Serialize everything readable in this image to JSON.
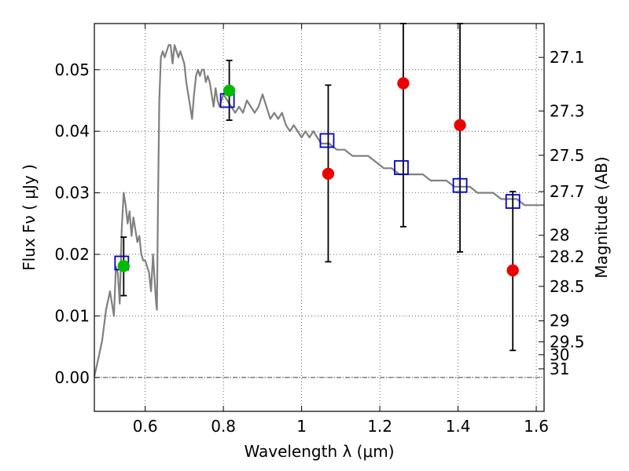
{
  "chart_data": {
    "type": "scatter",
    "xlabel": "Wavelength  λ (μm)",
    "ylabel": "Flux  Fν  ( μJy )",
    "y2label": "Magnitude (AB)",
    "xlim": [
      0.47,
      1.62
    ],
    "ylim": [
      -0.0055,
      0.0575
    ],
    "x_ticks": [
      0.6,
      0.8,
      1.0,
      1.2,
      1.4,
      1.6
    ],
    "x_tick_labels": [
      "0.6",
      "0.8",
      "1",
      "1.2",
      "1.4",
      "1.6"
    ],
    "y_ticks": [
      0.0,
      0.01,
      0.02,
      0.03,
      0.04,
      0.05
    ],
    "y_tick_labels": [
      "0.00",
      "0.01",
      "0.02",
      "0.03",
      "0.04",
      "0.05"
    ],
    "y2_ticks": [
      {
        "label": "27.1",
        "flux": 0.052
      },
      {
        "label": "27.3",
        "flux": 0.0433
      },
      {
        "label": "27.5",
        "flux": 0.0361
      },
      {
        "label": "27.7",
        "flux": 0.0302
      },
      {
        "label": "28",
        "flux": 0.0231
      },
      {
        "label": "28.2",
        "flux": 0.0196
      },
      {
        "label": "28.5",
        "flux": 0.0148
      },
      {
        "label": "29",
        "flux": 0.0092
      },
      {
        "label": "29.5",
        "flux": 0.0058
      },
      {
        "label": "30",
        "flux": 0.0037
      },
      {
        "label": "31",
        "flux": 0.0014
      }
    ],
    "grid": true,
    "zero_line": true,
    "model_spectrum": {
      "color": "#808080",
      "x": [
        0.47,
        0.48,
        0.49,
        0.5,
        0.51,
        0.52,
        0.525,
        0.53,
        0.535,
        0.54,
        0.545,
        0.55,
        0.555,
        0.56,
        0.565,
        0.57,
        0.575,
        0.58,
        0.585,
        0.59,
        0.595,
        0.6,
        0.605,
        0.61,
        0.615,
        0.62,
        0.625,
        0.628,
        0.63,
        0.633,
        0.636,
        0.64,
        0.645,
        0.65,
        0.66,
        0.665,
        0.67,
        0.675,
        0.68,
        0.685,
        0.69,
        0.695,
        0.7,
        0.705,
        0.71,
        0.715,
        0.72,
        0.725,
        0.73,
        0.735,
        0.74,
        0.745,
        0.75,
        0.755,
        0.76,
        0.765,
        0.77,
        0.775,
        0.78,
        0.785,
        0.79,
        0.8,
        0.81,
        0.82,
        0.83,
        0.84,
        0.85,
        0.86,
        0.87,
        0.88,
        0.89,
        0.9,
        0.91,
        0.92,
        0.93,
        0.94,
        0.95,
        0.96,
        0.97,
        0.98,
        0.99,
        1.0,
        1.01,
        1.02,
        1.03,
        1.04,
        1.05,
        1.07,
        1.09,
        1.11,
        1.13,
        1.15,
        1.17,
        1.19,
        1.21,
        1.23,
        1.25,
        1.27,
        1.29,
        1.31,
        1.33,
        1.35,
        1.37,
        1.39,
        1.41,
        1.43,
        1.45,
        1.47,
        1.49,
        1.51,
        1.53,
        1.55,
        1.57,
        1.59,
        1.61,
        1.62
      ],
      "y": [
        0.0002,
        0.003,
        0.006,
        0.011,
        0.014,
        0.01,
        0.018,
        0.017,
        0.012,
        0.024,
        0.03,
        0.028,
        0.025,
        0.027,
        0.023,
        0.026,
        0.024,
        0.022,
        0.023,
        0.02,
        0.019,
        0.019,
        0.018,
        0.017,
        0.014,
        0.02,
        0.015,
        0.012,
        0.011,
        0.03,
        0.045,
        0.052,
        0.053,
        0.052,
        0.054,
        0.054,
        0.051,
        0.054,
        0.053,
        0.052,
        0.053,
        0.052,
        0.051,
        0.048,
        0.046,
        0.044,
        0.042,
        0.046,
        0.049,
        0.05,
        0.049,
        0.05,
        0.05,
        0.048,
        0.049,
        0.048,
        0.046,
        0.044,
        0.047,
        0.045,
        0.044,
        0.046,
        0.045,
        0.044,
        0.043,
        0.044,
        0.043,
        0.045,
        0.044,
        0.043,
        0.044,
        0.046,
        0.044,
        0.042,
        0.043,
        0.042,
        0.043,
        0.041,
        0.04,
        0.041,
        0.04,
        0.039,
        0.04,
        0.039,
        0.04,
        0.039,
        0.038,
        0.038,
        0.037,
        0.037,
        0.036,
        0.036,
        0.036,
        0.035,
        0.034,
        0.034,
        0.033,
        0.033,
        0.033,
        0.033,
        0.032,
        0.032,
        0.032,
        0.031,
        0.031,
        0.031,
        0.03,
        0.03,
        0.03,
        0.029,
        0.029,
        0.029,
        0.028,
        0.028,
        0.028,
        0.028
      ]
    },
    "series": [
      {
        "marker": "square",
        "color": "#0000cc",
        "points": [
          {
            "x": 0.54,
            "y": 0.0186
          },
          {
            "x": 0.81,
            "y": 0.045
          },
          {
            "x": 1.065,
            "y": 0.0385
          },
          {
            "x": 1.255,
            "y": 0.0341
          },
          {
            "x": 1.405,
            "y": 0.0312
          },
          {
            "x": 1.54,
            "y": 0.0286
          }
        ]
      },
      {
        "marker": "circle",
        "color": "#00bb00",
        "points": [
          {
            "x": 0.545,
            "y": 0.0181,
            "err_low": 0.0133,
            "err_high": 0.0228
          },
          {
            "x": 0.815,
            "y": 0.0466,
            "err_low": 0.0418,
            "err_high": 0.0515
          }
        ]
      },
      {
        "marker": "circle",
        "color": "#ee0000",
        "points": [
          {
            "x": 1.068,
            "y": 0.0331,
            "err_low": 0.0188,
            "err_high": 0.0475
          },
          {
            "x": 1.26,
            "y": 0.0478,
            "err_low": 0.0245,
            "err_high": 0.0575
          },
          {
            "x": 1.405,
            "y": 0.041,
            "err_low": 0.0204,
            "err_high": 0.0575
          },
          {
            "x": 1.54,
            "y": 0.0174,
            "err_low": 0.0044,
            "err_high": 0.0302
          }
        ]
      }
    ]
  }
}
